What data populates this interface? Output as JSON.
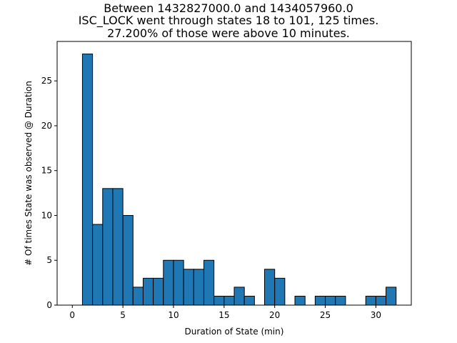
{
  "chart_data": {
    "type": "bar",
    "title_lines": [
      "Between 1432827000.0 and 1434057960.0",
      "ISC_LOCK went through states 18 to 101, 125 times.",
      "27.200% of those were above 10 minutes."
    ],
    "xlabel": "Duration of State (min)",
    "ylabel": "# Of times State was observed @ Duration",
    "xlim": [
      -1.5,
      33.5
    ],
    "ylim": [
      0,
      29.4
    ],
    "xticks": [
      0,
      5,
      10,
      15,
      20,
      25,
      30
    ],
    "yticks": [
      0,
      5,
      10,
      15,
      20,
      25
    ],
    "bin_edges": [
      1,
      2,
      3,
      4,
      5,
      6,
      7,
      8,
      9,
      10,
      11,
      12,
      13,
      14,
      15,
      16,
      17,
      18,
      19,
      20,
      21,
      22,
      23,
      24,
      25,
      26,
      27,
      28,
      29,
      30,
      31,
      32
    ],
    "values": [
      28,
      9,
      13,
      13,
      10,
      2,
      3,
      3,
      5,
      5,
      4,
      4,
      5,
      1,
      1,
      2,
      1,
      0,
      4,
      3,
      0,
      1,
      0,
      1,
      1,
      1,
      0,
      0,
      1,
      1,
      2
    ],
    "bar_color": "#1f77b4",
    "edge_color": "#000000",
    "grid": false
  }
}
